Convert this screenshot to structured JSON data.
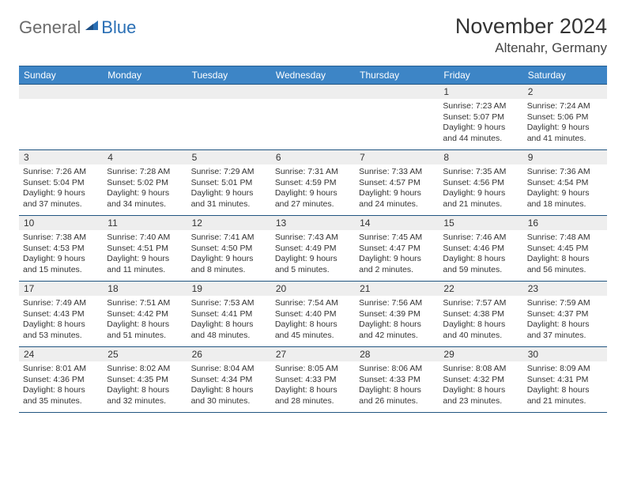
{
  "logo": {
    "general": "General",
    "blue": "Blue"
  },
  "title": "November 2024",
  "location": "Altenahr, Germany",
  "colors": {
    "header_bg": "#3d85c6",
    "header_text": "#ffffff",
    "border": "#215581",
    "daynum_bg": "#eeeeee",
    "logo_gray": "#6b6b6b",
    "logo_blue": "#2a6fb5"
  },
  "day_headers": [
    "Sunday",
    "Monday",
    "Tuesday",
    "Wednesday",
    "Thursday",
    "Friday",
    "Saturday"
  ],
  "weeks": [
    [
      null,
      null,
      null,
      null,
      null,
      {
        "n": "1",
        "sr": "Sunrise: 7:23 AM",
        "ss": "Sunset: 5:07 PM",
        "d1": "Daylight: 9 hours",
        "d2": "and 44 minutes."
      },
      {
        "n": "2",
        "sr": "Sunrise: 7:24 AM",
        "ss": "Sunset: 5:06 PM",
        "d1": "Daylight: 9 hours",
        "d2": "and 41 minutes."
      }
    ],
    [
      {
        "n": "3",
        "sr": "Sunrise: 7:26 AM",
        "ss": "Sunset: 5:04 PM",
        "d1": "Daylight: 9 hours",
        "d2": "and 37 minutes."
      },
      {
        "n": "4",
        "sr": "Sunrise: 7:28 AM",
        "ss": "Sunset: 5:02 PM",
        "d1": "Daylight: 9 hours",
        "d2": "and 34 minutes."
      },
      {
        "n": "5",
        "sr": "Sunrise: 7:29 AM",
        "ss": "Sunset: 5:01 PM",
        "d1": "Daylight: 9 hours",
        "d2": "and 31 minutes."
      },
      {
        "n": "6",
        "sr": "Sunrise: 7:31 AM",
        "ss": "Sunset: 4:59 PM",
        "d1": "Daylight: 9 hours",
        "d2": "and 27 minutes."
      },
      {
        "n": "7",
        "sr": "Sunrise: 7:33 AM",
        "ss": "Sunset: 4:57 PM",
        "d1": "Daylight: 9 hours",
        "d2": "and 24 minutes."
      },
      {
        "n": "8",
        "sr": "Sunrise: 7:35 AM",
        "ss": "Sunset: 4:56 PM",
        "d1": "Daylight: 9 hours",
        "d2": "and 21 minutes."
      },
      {
        "n": "9",
        "sr": "Sunrise: 7:36 AM",
        "ss": "Sunset: 4:54 PM",
        "d1": "Daylight: 9 hours",
        "d2": "and 18 minutes."
      }
    ],
    [
      {
        "n": "10",
        "sr": "Sunrise: 7:38 AM",
        "ss": "Sunset: 4:53 PM",
        "d1": "Daylight: 9 hours",
        "d2": "and 15 minutes."
      },
      {
        "n": "11",
        "sr": "Sunrise: 7:40 AM",
        "ss": "Sunset: 4:51 PM",
        "d1": "Daylight: 9 hours",
        "d2": "and 11 minutes."
      },
      {
        "n": "12",
        "sr": "Sunrise: 7:41 AM",
        "ss": "Sunset: 4:50 PM",
        "d1": "Daylight: 9 hours",
        "d2": "and 8 minutes."
      },
      {
        "n": "13",
        "sr": "Sunrise: 7:43 AM",
        "ss": "Sunset: 4:49 PM",
        "d1": "Daylight: 9 hours",
        "d2": "and 5 minutes."
      },
      {
        "n": "14",
        "sr": "Sunrise: 7:45 AM",
        "ss": "Sunset: 4:47 PM",
        "d1": "Daylight: 9 hours",
        "d2": "and 2 minutes."
      },
      {
        "n": "15",
        "sr": "Sunrise: 7:46 AM",
        "ss": "Sunset: 4:46 PM",
        "d1": "Daylight: 8 hours",
        "d2": "and 59 minutes."
      },
      {
        "n": "16",
        "sr": "Sunrise: 7:48 AM",
        "ss": "Sunset: 4:45 PM",
        "d1": "Daylight: 8 hours",
        "d2": "and 56 minutes."
      }
    ],
    [
      {
        "n": "17",
        "sr": "Sunrise: 7:49 AM",
        "ss": "Sunset: 4:43 PM",
        "d1": "Daylight: 8 hours",
        "d2": "and 53 minutes."
      },
      {
        "n": "18",
        "sr": "Sunrise: 7:51 AM",
        "ss": "Sunset: 4:42 PM",
        "d1": "Daylight: 8 hours",
        "d2": "and 51 minutes."
      },
      {
        "n": "19",
        "sr": "Sunrise: 7:53 AM",
        "ss": "Sunset: 4:41 PM",
        "d1": "Daylight: 8 hours",
        "d2": "and 48 minutes."
      },
      {
        "n": "20",
        "sr": "Sunrise: 7:54 AM",
        "ss": "Sunset: 4:40 PM",
        "d1": "Daylight: 8 hours",
        "d2": "and 45 minutes."
      },
      {
        "n": "21",
        "sr": "Sunrise: 7:56 AM",
        "ss": "Sunset: 4:39 PM",
        "d1": "Daylight: 8 hours",
        "d2": "and 42 minutes."
      },
      {
        "n": "22",
        "sr": "Sunrise: 7:57 AM",
        "ss": "Sunset: 4:38 PM",
        "d1": "Daylight: 8 hours",
        "d2": "and 40 minutes."
      },
      {
        "n": "23",
        "sr": "Sunrise: 7:59 AM",
        "ss": "Sunset: 4:37 PM",
        "d1": "Daylight: 8 hours",
        "d2": "and 37 minutes."
      }
    ],
    [
      {
        "n": "24",
        "sr": "Sunrise: 8:01 AM",
        "ss": "Sunset: 4:36 PM",
        "d1": "Daylight: 8 hours",
        "d2": "and 35 minutes."
      },
      {
        "n": "25",
        "sr": "Sunrise: 8:02 AM",
        "ss": "Sunset: 4:35 PM",
        "d1": "Daylight: 8 hours",
        "d2": "and 32 minutes."
      },
      {
        "n": "26",
        "sr": "Sunrise: 8:04 AM",
        "ss": "Sunset: 4:34 PM",
        "d1": "Daylight: 8 hours",
        "d2": "and 30 minutes."
      },
      {
        "n": "27",
        "sr": "Sunrise: 8:05 AM",
        "ss": "Sunset: 4:33 PM",
        "d1": "Daylight: 8 hours",
        "d2": "and 28 minutes."
      },
      {
        "n": "28",
        "sr": "Sunrise: 8:06 AM",
        "ss": "Sunset: 4:33 PM",
        "d1": "Daylight: 8 hours",
        "d2": "and 26 minutes."
      },
      {
        "n": "29",
        "sr": "Sunrise: 8:08 AM",
        "ss": "Sunset: 4:32 PM",
        "d1": "Daylight: 8 hours",
        "d2": "and 23 minutes."
      },
      {
        "n": "30",
        "sr": "Sunrise: 8:09 AM",
        "ss": "Sunset: 4:31 PM",
        "d1": "Daylight: 8 hours",
        "d2": "and 21 minutes."
      }
    ]
  ]
}
